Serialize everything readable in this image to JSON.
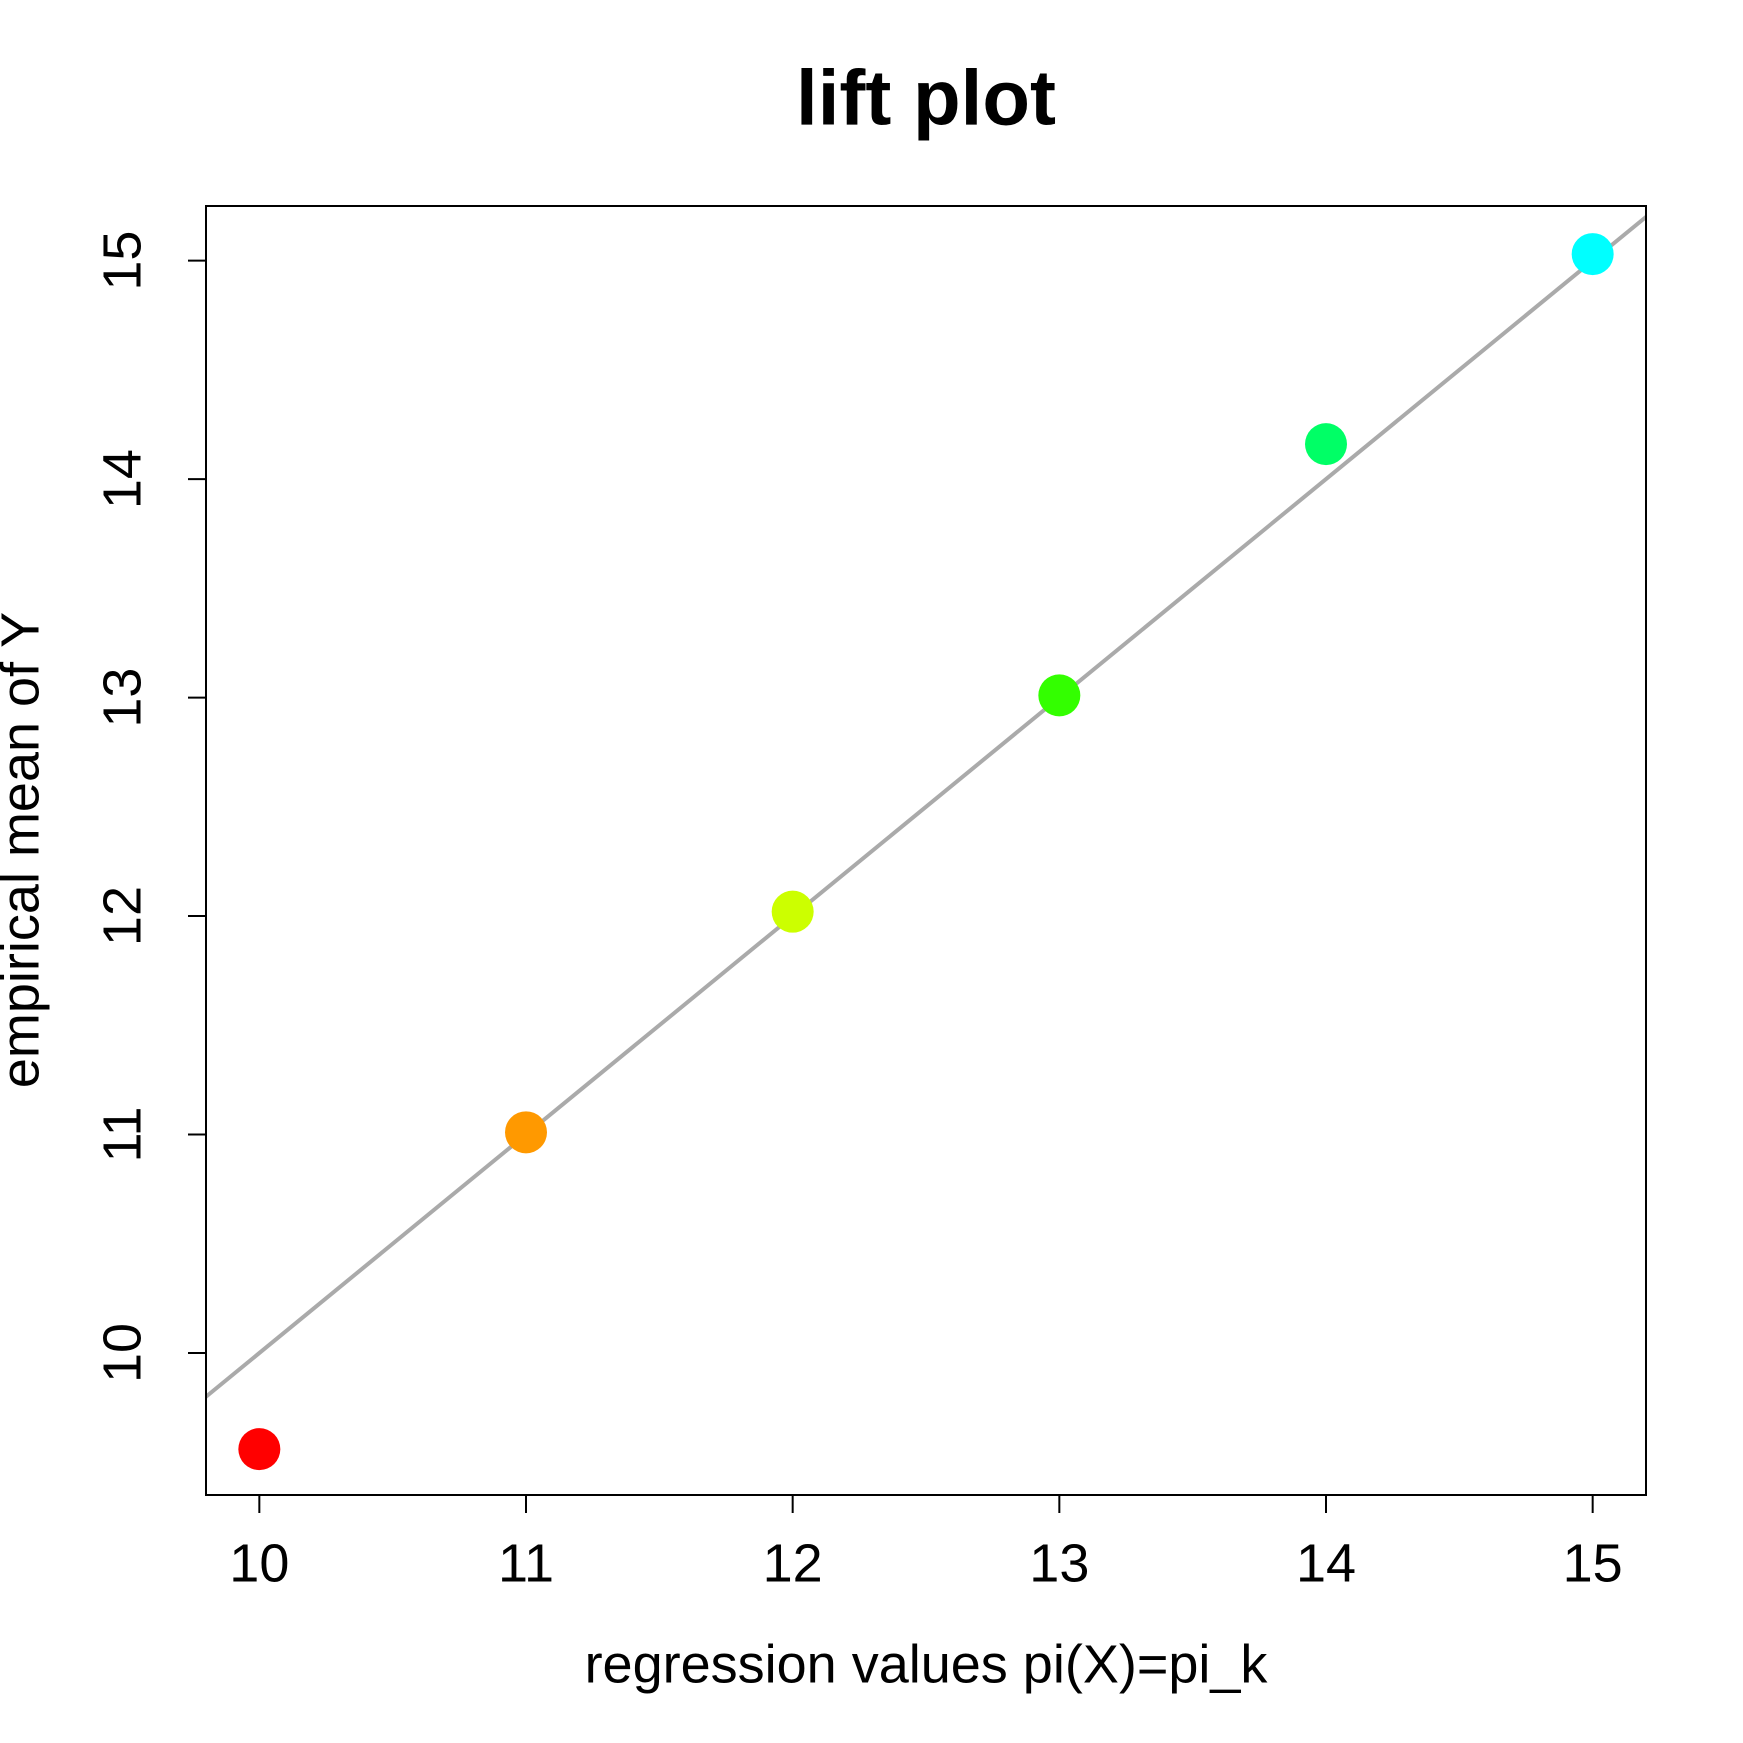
{
  "chart_data": {
    "type": "scatter",
    "title": "lift plot",
    "x_label": "regression values pi(X)=pi_k",
    "y_label": "empirical mean of Y",
    "x": [
      10,
      11,
      12,
      13,
      14,
      15
    ],
    "values": [
      9.56,
      11.01,
      12.02,
      13.01,
      14.16,
      15.03
    ],
    "colors": [
      "#ff0000",
      "#ff9900",
      "#ccff00",
      "#33ff00",
      "#00ff66",
      "#00ffff"
    ],
    "xlim": [
      9.8,
      15.2
    ],
    "ylim": [
      9.35,
      15.25
    ],
    "xticks": [
      10,
      11,
      12,
      13,
      14,
      15
    ],
    "yticks": [
      10,
      11,
      12,
      13,
      14,
      15
    ],
    "diagonal": true,
    "diagonal_color": "#aaaaaa"
  }
}
